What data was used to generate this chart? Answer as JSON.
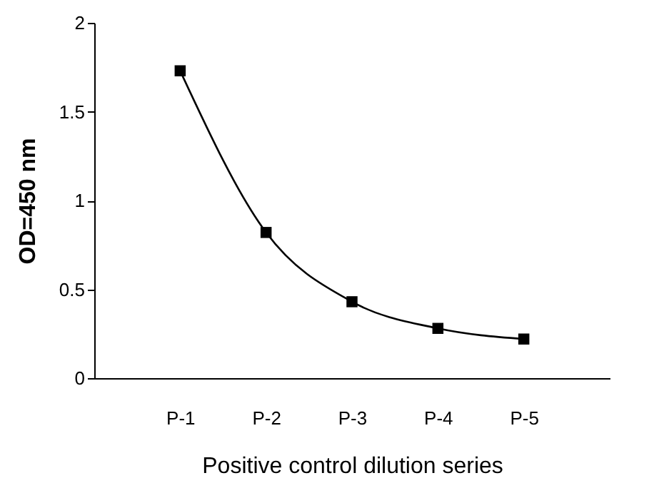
{
  "chart_data": {
    "type": "line",
    "xlabel": "Positive control dilution series",
    "ylabel": "OD=450 nm",
    "categories": [
      "P-1",
      "P-2",
      "P-3",
      "P-4",
      "P-5"
    ],
    "series": [
      {
        "color": "#000000",
        "values": [
          1.73,
          0.82,
          0.43,
          0.28,
          0.22
        ]
      }
    ],
    "ylim": [
      0,
      2
    ],
    "yticks": [
      0,
      0.5,
      1,
      1.5,
      2
    ],
    "grid": false,
    "marker": "square",
    "line_style": "solid"
  }
}
